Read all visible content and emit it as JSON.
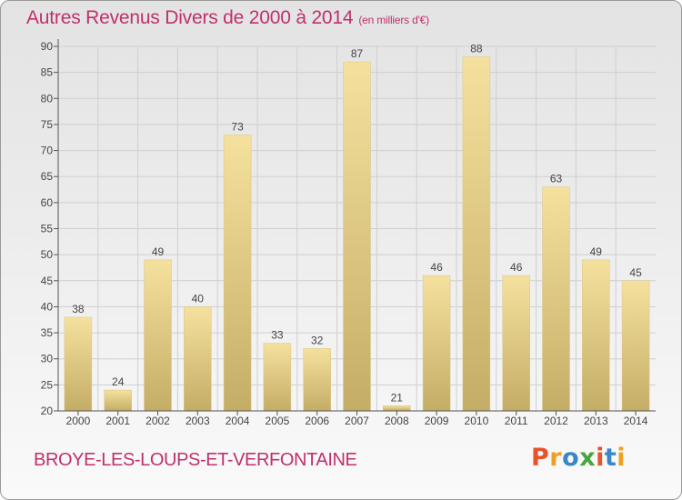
{
  "title": "Autres Revenus Divers de 2000 à 2014",
  "title_unit": "(en milliers d'€)",
  "commune": "BROYE-LES-LOUPS-ET-VERFONTAINE",
  "logo": {
    "letters": [
      "P",
      "r",
      "o",
      "x",
      "i",
      "t",
      "i"
    ],
    "colors": [
      "#e8532a",
      "#f0a020",
      "#3a86c8",
      "#49a540",
      "#e8532a",
      "#3a86c8",
      "#f0a020"
    ]
  },
  "colors": {
    "title": "#c0306e",
    "bar_light": "#f5e19e",
    "bar_dark": "#c4ad66",
    "grid": "#cfcfcf"
  },
  "chart_data": {
    "type": "bar",
    "title": "Autres Revenus Divers de 2000 à 2014",
    "subtitle": "(en milliers d'€)",
    "categories": [
      "2000",
      "2001",
      "2002",
      "2003",
      "2004",
      "2005",
      "2006",
      "2007",
      "2008",
      "2009",
      "2010",
      "2011",
      "2012",
      "2013",
      "2014"
    ],
    "values": [
      38,
      24,
      49,
      40,
      73,
      33,
      32,
      87,
      21,
      46,
      88,
      46,
      63,
      49,
      45
    ],
    "ylim": [
      20,
      90
    ],
    "yticks": [
      20,
      25,
      30,
      35,
      40,
      45,
      50,
      55,
      60,
      65,
      70,
      75,
      80,
      85,
      90
    ],
    "grid": true,
    "data_labels": true
  }
}
